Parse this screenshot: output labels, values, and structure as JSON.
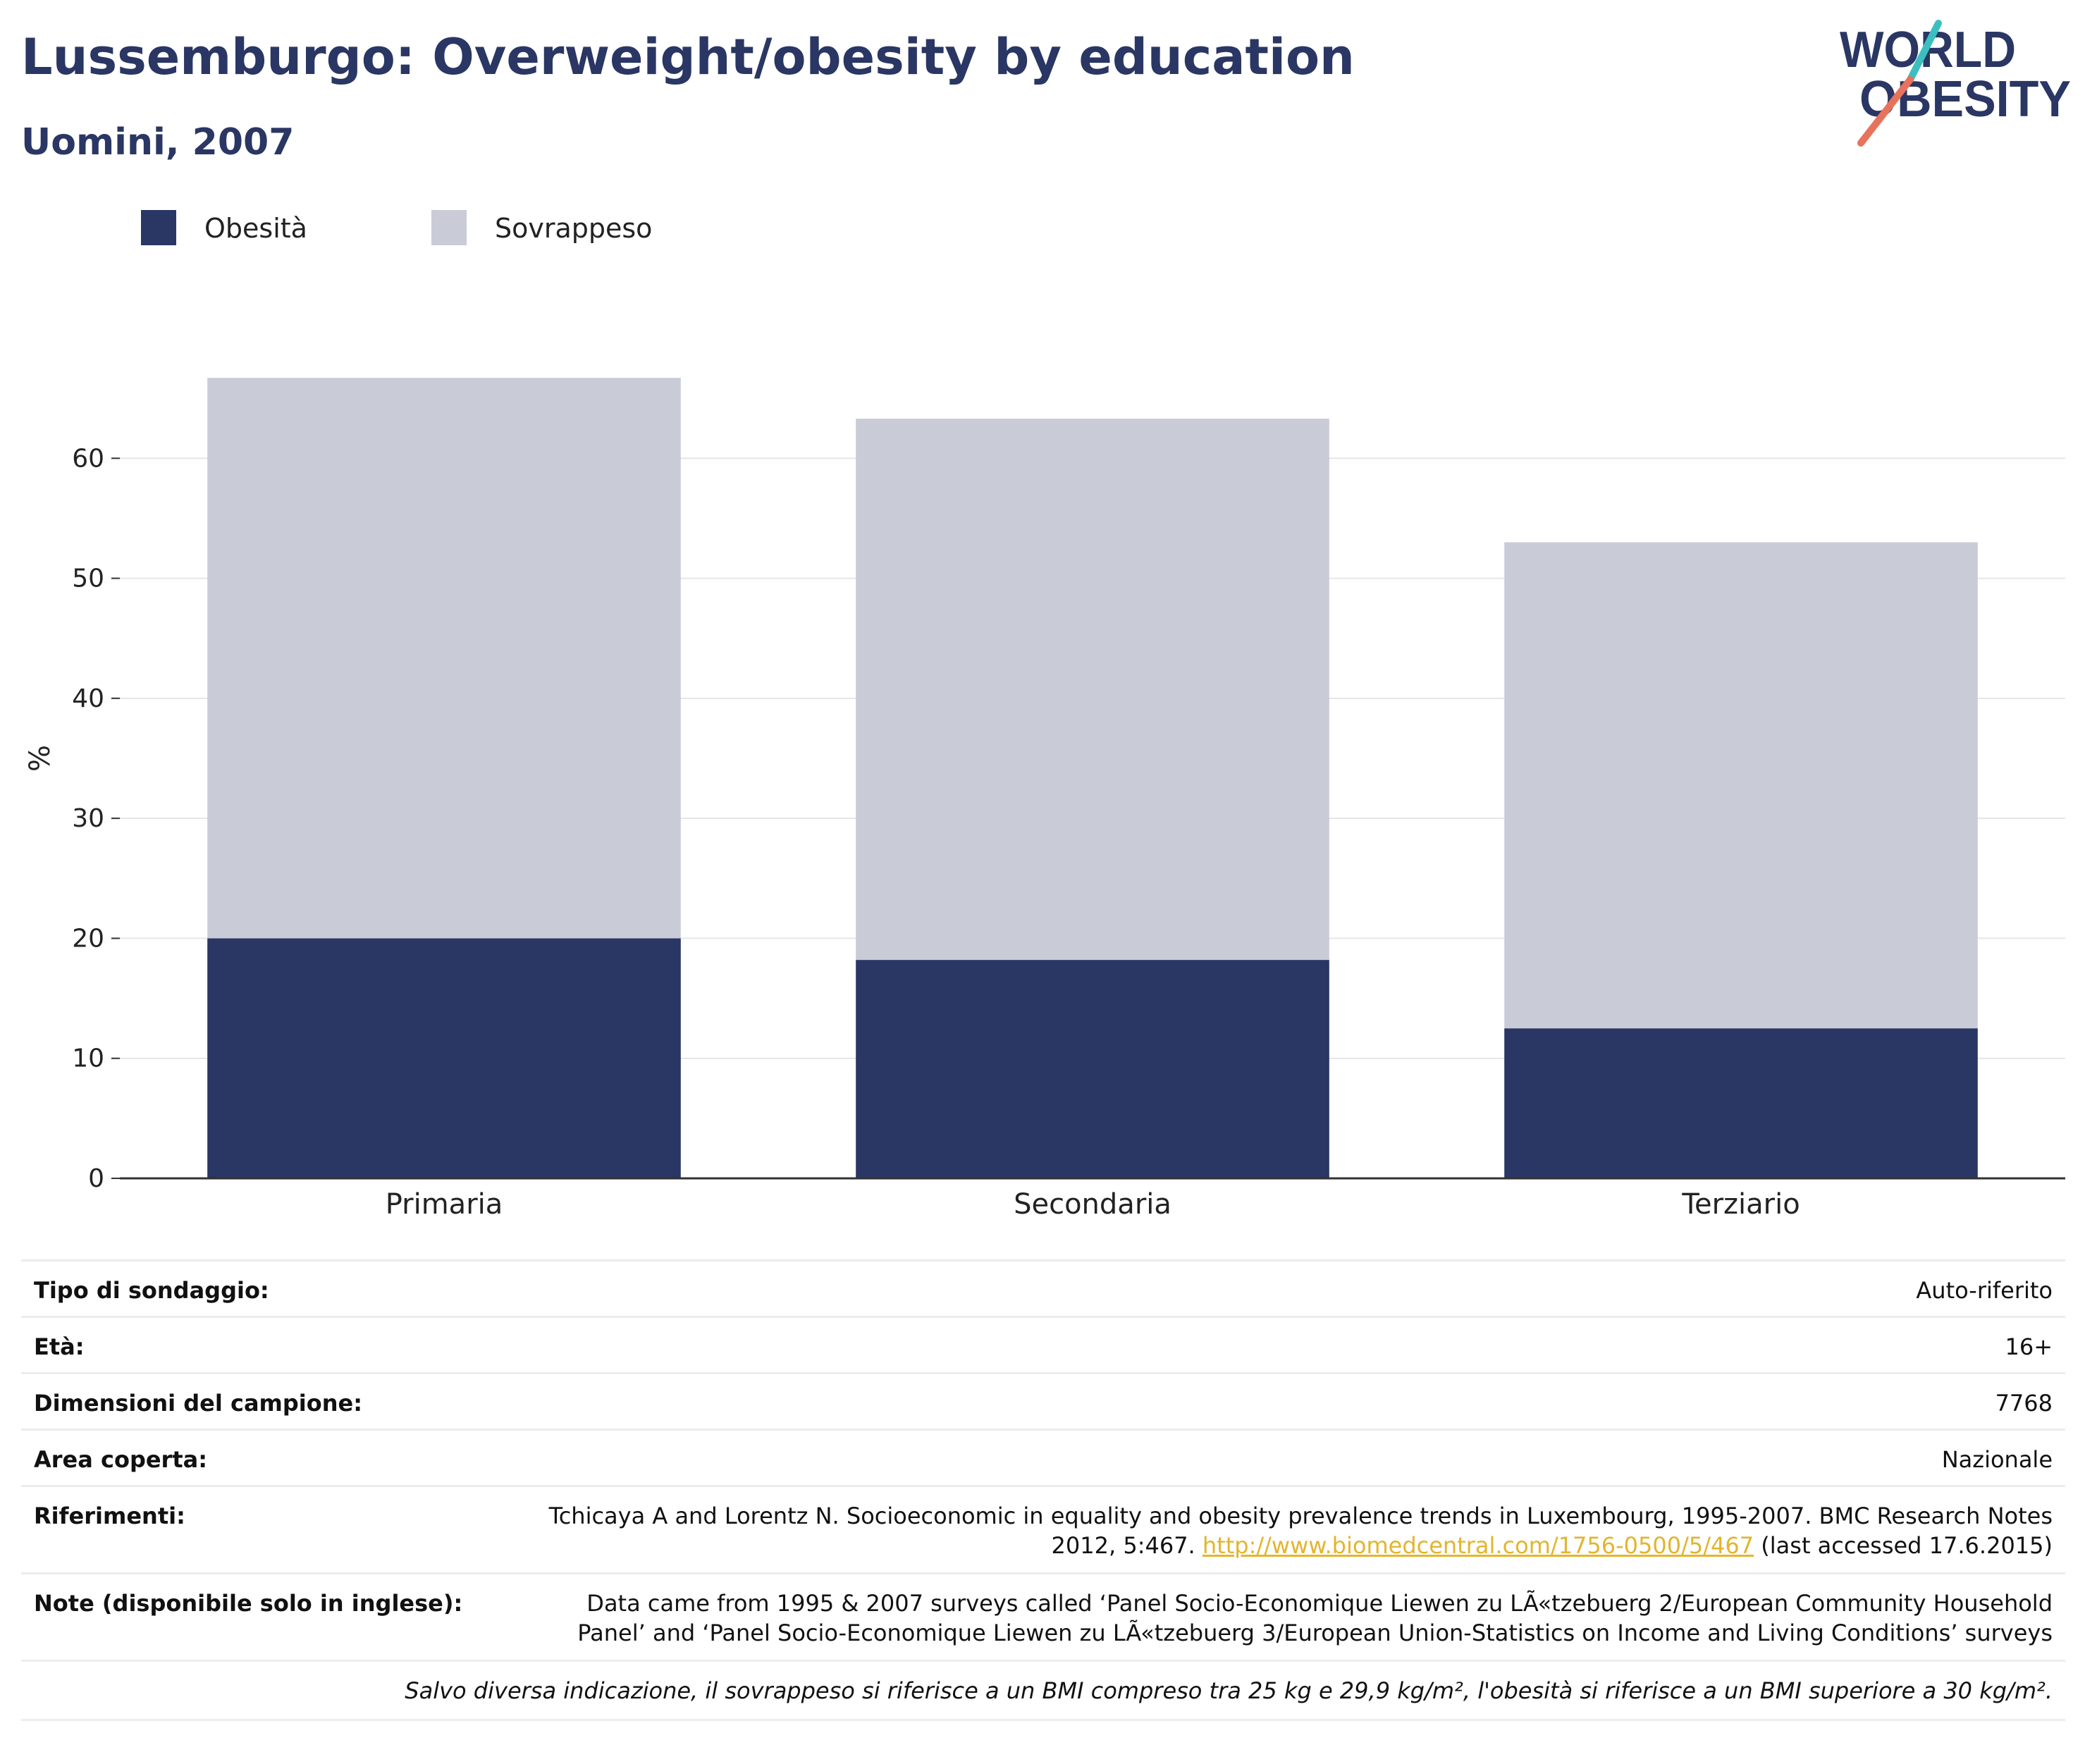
{
  "header": {
    "title": "Lussemburgo: Overweight/obesity by education",
    "subtitle": "Uomini, 2007"
  },
  "logo": {
    "line1": "WORLD",
    "line2": "OBESITY",
    "colors": {
      "navy": "#2a3663",
      "teal": "#3bbfc1",
      "coral": "#e8725b"
    }
  },
  "legend": {
    "items": [
      {
        "label": "Obesità",
        "color": "#2a3663"
      },
      {
        "label": "Sovrappeso",
        "color": "#c9cbd7"
      }
    ]
  },
  "chart_data": {
    "type": "bar",
    "stacked": true,
    "categories": [
      "Primaria",
      "Secondaria",
      "Terziario"
    ],
    "series": [
      {
        "name": "Obesità",
        "values": [
          20.0,
          18.2,
          12.5
        ],
        "color": "#2a3663"
      },
      {
        "name": "Sovrappeso",
        "values": [
          46.7,
          45.1,
          40.5
        ],
        "color": "#c9cbd7"
      }
    ],
    "title": "Lussemburgo: Overweight/obesity by education",
    "subtitle": "Uomini, 2007",
    "xlabel": "",
    "ylabel": "%",
    "ylim": [
      0,
      70
    ],
    "yticks": [
      0,
      10,
      20,
      30,
      40,
      50,
      60
    ],
    "grid": true,
    "legend_position": "top-left"
  },
  "info": {
    "rows": [
      {
        "label": "Tipo di sondaggio:",
        "value": "Auto-riferito"
      },
      {
        "label": "Età:",
        "value": "16+"
      },
      {
        "label": "Dimensioni del campione:",
        "value": "7768"
      },
      {
        "label": "Area coperta:",
        "value": "Nazionale"
      }
    ],
    "references": {
      "label": "Riferimenti:",
      "text_line1": "Tchicaya A and Lorentz N. Socioeconomic in equality and obesity prevalence trends in Luxembourg, 1995-2007. BMC Research Notes",
      "text_line2_prefix": "2012, 5:467. ",
      "link": "http://www.biomedcentral.com/1756-0500/5/467",
      "text_line2_suffix": " (last accessed 17.6.2015)"
    },
    "notes": {
      "label": "Note (disponibile solo in inglese):",
      "line1": "Data came from 1995 & 2007 surveys called ‘Panel Socio-Economique Liewen zu LÃ«tzebuerg 2/European Community Household",
      "line2": "Panel’ and ‘Panel Socio-Economique Liewen zu LÃ«tzebuerg 3/European Union-Statistics on Income and Living Conditions’ surveys"
    },
    "footnote": "Salvo diversa indicazione, il sovrappeso si riferisce a un BMI compreso tra 25 kg e 29,9 kg/m², l'obesità si riferisce a un BMI superiore a 30 kg/m²."
  }
}
